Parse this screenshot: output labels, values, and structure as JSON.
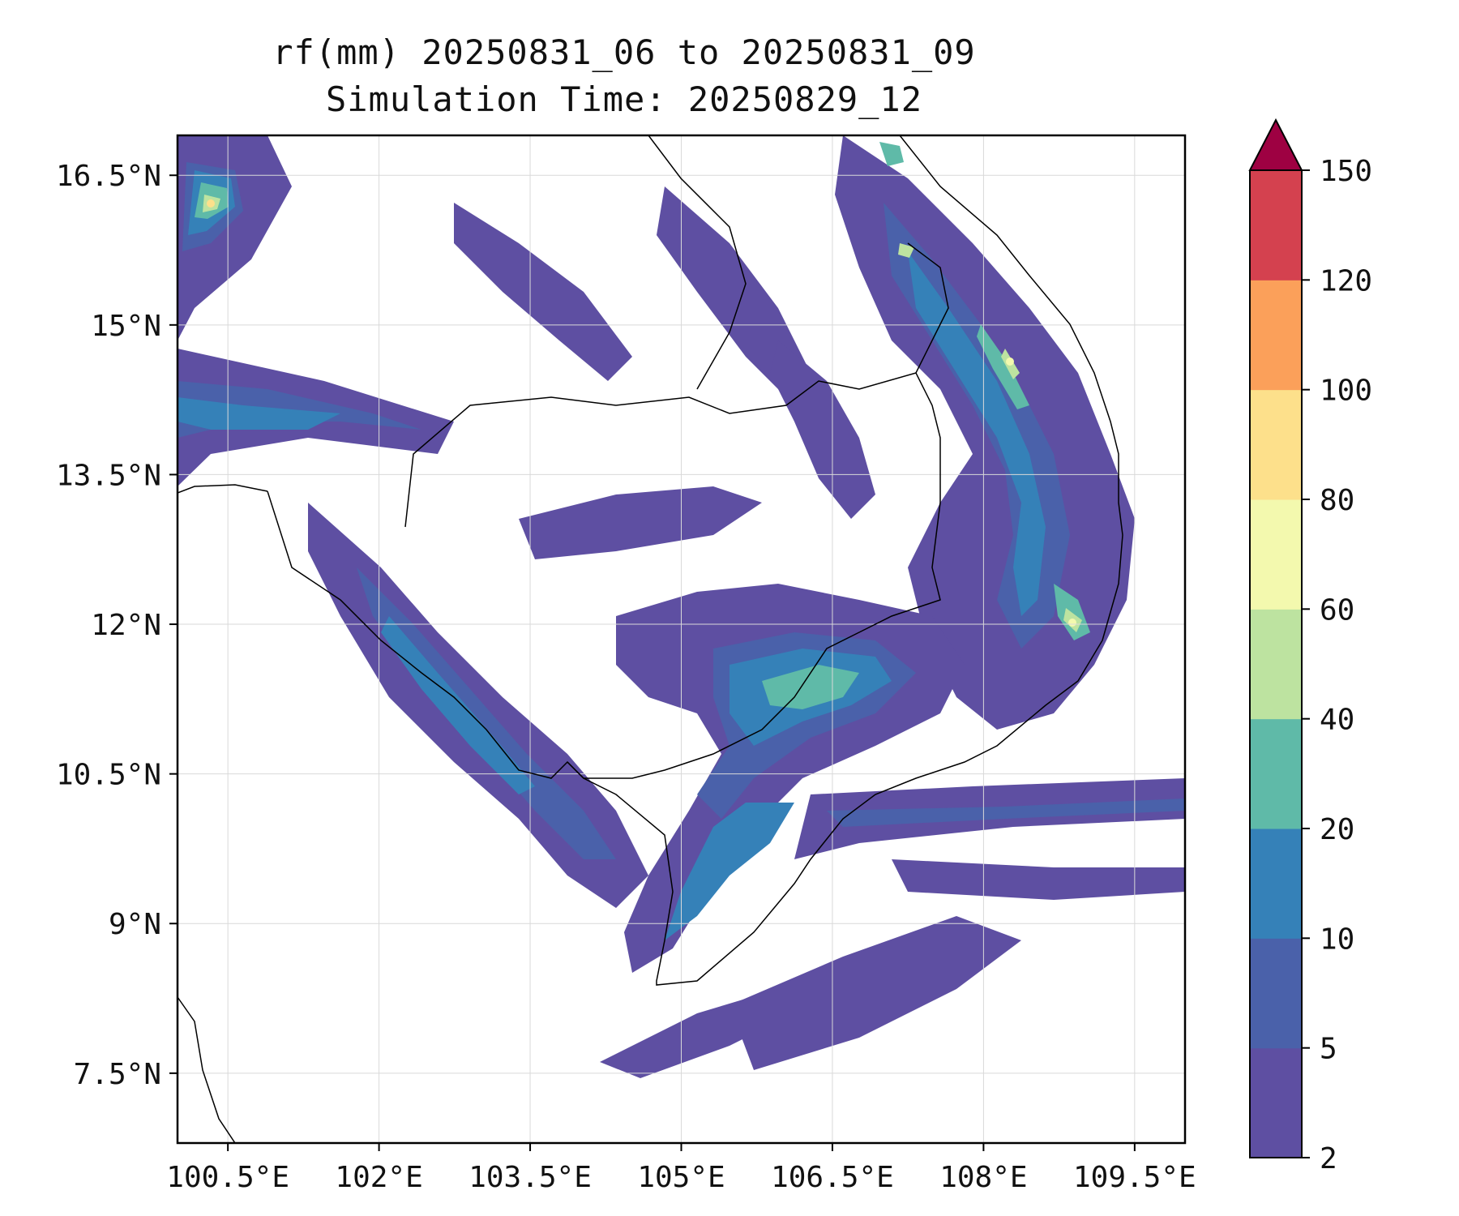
{
  "title": {
    "line1": "rf(mm) 20250831_06 to 20250831_09",
    "line2": "Simulation Time: 20250829_12"
  },
  "map": {
    "lon_range": [
      100.0,
      110.0
    ],
    "lat_range": [
      6.8,
      16.9
    ],
    "lon_ticks": [
      {
        "value": 100.5,
        "label": "100.5°E"
      },
      {
        "value": 102.0,
        "label": "102°E"
      },
      {
        "value": 103.5,
        "label": "103.5°E"
      },
      {
        "value": 105.0,
        "label": "105°E"
      },
      {
        "value": 106.5,
        "label": "106.5°E"
      },
      {
        "value": 108.0,
        "label": "108°E"
      },
      {
        "value": 109.5,
        "label": "109.5°E"
      }
    ],
    "lat_ticks": [
      {
        "value": 16.5,
        "label": "16.5°N"
      },
      {
        "value": 15.0,
        "label": "15°N"
      },
      {
        "value": 13.5,
        "label": "13.5°N"
      },
      {
        "value": 12.0,
        "label": "12°N"
      },
      {
        "value": 10.5,
        "label": "10.5°N"
      },
      {
        "value": 9.0,
        "label": "9°N"
      },
      {
        "value": 7.5,
        "label": "7.5°N"
      }
    ],
    "grid": true
  },
  "colorbar": {
    "levels": [
      "2",
      "5",
      "10",
      "20",
      "40",
      "60",
      "80",
      "100",
      "120",
      "150"
    ],
    "colors": [
      "#5e4fa2",
      "#4a61aa",
      "#3581b8",
      "#5fbaa8",
      "#bde3a0",
      "#f3f9ae",
      "#fde08b",
      "#fba05a",
      "#d4414f"
    ],
    "extend_color": "#9e0142"
  }
}
